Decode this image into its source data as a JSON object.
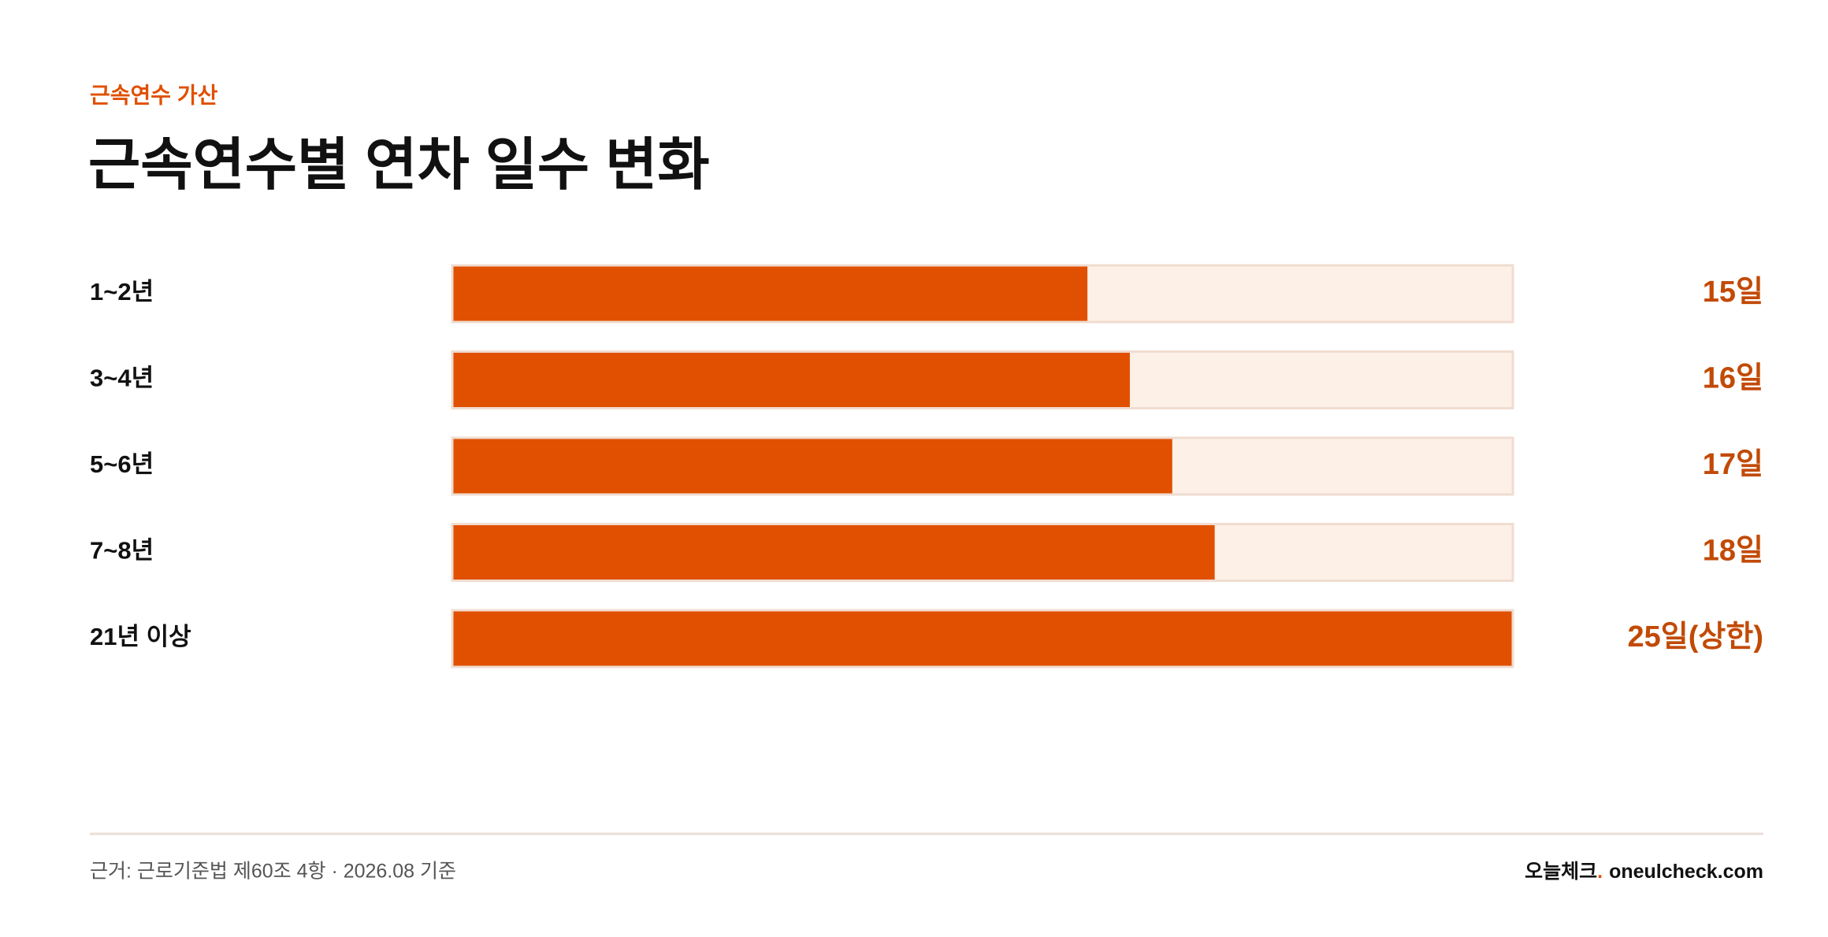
{
  "chart_data": {
    "type": "bar",
    "orientation": "horizontal",
    "eyebrow": "근속연수 가산",
    "title": "근속연수별 연차 일수 변화",
    "categories": [
      "1~2년",
      "3~4년",
      "5~6년",
      "7~8년",
      "21년 이상"
    ],
    "values": [
      15,
      16,
      17,
      18,
      25
    ],
    "value_labels": [
      "15일",
      "16일",
      "17일",
      "18일",
      "25일(상한)"
    ],
    "color": "#e05000",
    "track_color": "#fdf0e6",
    "xlim": [
      0,
      25
    ],
    "source": "근거: 근로기준법 제60조 4항 · 2026.08 기준",
    "brand": {
      "name": "오늘체크",
      "dot": ".",
      "domain": "oneulcheck.com"
    }
  }
}
